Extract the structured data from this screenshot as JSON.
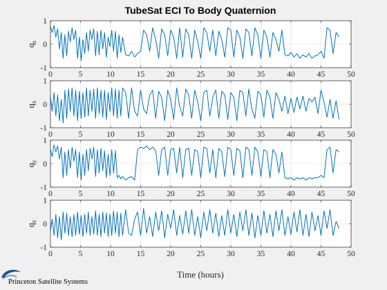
{
  "figure": {
    "title": "TubeSat ECI To Body Quaternion",
    "xlabel": "Time (hours)",
    "logo_text": "Princeton Satellite Systems",
    "line_color": "#0072bd"
  },
  "chart_data": [
    {
      "type": "line",
      "ylabel": "q_s",
      "xlim": [
        0,
        50
      ],
      "ylim": [
        -1,
        1
      ],
      "xticks": [
        0,
        5,
        10,
        15,
        20,
        25,
        30,
        35,
        40,
        45,
        50
      ],
      "yticks": [
        -1,
        0,
        1
      ],
      "grid": true,
      "series": [
        {
          "x": [
            0,
            0.3,
            0.6,
            0.9,
            1.2,
            1.5,
            1.8,
            2.1,
            2.4,
            2.7,
            3.0,
            3.3,
            3.6,
            3.9,
            4.2,
            4.5,
            4.8,
            5.1,
            5.4,
            5.7,
            6.0,
            6.3,
            6.6,
            6.9,
            7.2,
            7.5,
            7.8,
            8.1,
            8.4,
            8.7,
            9.0,
            9.3,
            9.6,
            9.9,
            10.2,
            10.5,
            10.8,
            11.1,
            11.4,
            11.7,
            12.0,
            12.5,
            13.0,
            13.5,
            14.0,
            14.5,
            15.0,
            15.5,
            16.0,
            16.5,
            17.0,
            17.5,
            18.0,
            18.5,
            19.0,
            19.5,
            20.0,
            20.5,
            21.0,
            21.5,
            22.0,
            22.5,
            23.0,
            23.5,
            24.0,
            24.5,
            25.0,
            25.5,
            26.0,
            26.5,
            27.0,
            27.5,
            28.0,
            28.5,
            29.0,
            29.5,
            30.0,
            30.5,
            31.0,
            31.5,
            32.0,
            32.5,
            33.0,
            33.5,
            34.0,
            34.5,
            35.0,
            35.5,
            36.0,
            36.5,
            37.0,
            37.5,
            38.0,
            38.5,
            39.0,
            39.5,
            40.0,
            40.5,
            41.0,
            41.5,
            42.0,
            42.5,
            43.0,
            43.5,
            44.0,
            44.5,
            45.0,
            45.5,
            46.0,
            46.5,
            47.0,
            47.5,
            48.0
          ],
          "y": [
            0.75,
            0.5,
            0.8,
            0.3,
            0.65,
            -0.2,
            0.5,
            -0.6,
            0.4,
            -0.5,
            0.55,
            0.1,
            0.7,
            0.2,
            0.6,
            -0.6,
            0.3,
            -0.7,
            0.2,
            -0.4,
            0.5,
            -0.3,
            0.6,
            0.2,
            0.65,
            -0.5,
            0.55,
            -0.45,
            0.6,
            -0.2,
            0.5,
            -0.55,
            0.3,
            -0.1,
            0.6,
            -0.3,
            0.55,
            -0.6,
            0.4,
            -0.35,
            0.3,
            -0.45,
            -0.5,
            -0.3,
            -0.55,
            -0.4,
            -0.3,
            0.6,
            0.4,
            -0.3,
            0.7,
            0.2,
            -0.6,
            0.65,
            0.4,
            -0.5,
            0.6,
            0.3,
            -0.6,
            0.7,
            -0.55,
            0.65,
            0.4,
            -0.6,
            0.6,
            0.1,
            -0.6,
            0.7,
            0.5,
            -0.3,
            0.6,
            -0.5,
            0.55,
            0.2,
            -0.55,
            0.7,
            0.6,
            -0.55,
            0.6,
            0.3,
            -0.6,
            0.65,
            0.5,
            -0.5,
            0.7,
            0.4,
            -0.6,
            0.6,
            0.3,
            -0.55,
            0.5,
            0.2,
            -0.3,
            0.6,
            -0.45,
            -0.5,
            -0.35,
            -0.55,
            -0.4,
            -0.6,
            -0.45,
            -0.55,
            -0.4,
            -0.6,
            -0.5,
            -0.45,
            -0.3,
            -0.6,
            0.7,
            0.6,
            -0.4,
            0.5,
            0.3
          ]
        }
      ]
    },
    {
      "type": "line",
      "ylabel": "q_x",
      "xlim": [
        0,
        50
      ],
      "ylim": [
        -1,
        1
      ],
      "xticks": [
        0,
        5,
        10,
        15,
        20,
        25,
        30,
        35,
        40,
        45,
        50
      ],
      "yticks": [
        -1,
        0,
        1
      ],
      "grid": true,
      "series": [
        {
          "x": [
            0,
            0.3,
            0.6,
            0.9,
            1.2,
            1.5,
            1.8,
            2.1,
            2.4,
            2.7,
            3.0,
            3.3,
            3.6,
            3.9,
            4.2,
            4.5,
            4.8,
            5.1,
            5.4,
            5.7,
            6.0,
            6.3,
            6.6,
            6.9,
            7.2,
            7.5,
            7.8,
            8.1,
            8.4,
            8.7,
            9.0,
            9.3,
            9.6,
            9.9,
            10.2,
            10.5,
            10.8,
            11.1,
            11.4,
            11.7,
            12.0,
            12.5,
            13.0,
            13.5,
            14.0,
            14.5,
            15.0,
            15.5,
            16.0,
            16.5,
            17.0,
            17.5,
            18.0,
            18.5,
            19.0,
            19.5,
            20.0,
            20.5,
            21.0,
            21.5,
            22.0,
            22.5,
            23.0,
            23.5,
            24.0,
            24.5,
            25.0,
            25.5,
            26.0,
            26.5,
            27.0,
            27.5,
            28.0,
            28.5,
            29.0,
            29.5,
            30.0,
            30.5,
            31.0,
            31.5,
            32.0,
            32.5,
            33.0,
            33.5,
            34.0,
            34.5,
            35.0,
            35.5,
            36.0,
            36.5,
            37.0,
            37.5,
            38.0,
            38.5,
            39.0,
            39.5,
            40.0,
            40.5,
            41.0,
            41.5,
            42.0,
            42.5,
            43.0,
            43.5,
            44.0,
            44.5,
            45.0,
            45.5,
            46.0,
            46.5,
            47.0,
            47.5,
            48.0
          ],
          "y": [
            0.3,
            -0.3,
            0.5,
            -0.5,
            0.4,
            -0.7,
            0.2,
            -0.8,
            0.6,
            -0.6,
            0.65,
            -0.3,
            0.7,
            -0.5,
            0.6,
            -0.7,
            0.55,
            -0.6,
            0.5,
            -0.55,
            0.7,
            -0.5,
            0.6,
            -0.3,
            0.65,
            -0.6,
            0.7,
            -0.4,
            0.6,
            -0.55,
            0.6,
            -0.65,
            0.5,
            -0.3,
            0.7,
            -0.5,
            0.65,
            -0.6,
            0.6,
            -0.5,
            0.7,
            0.5,
            -0.6,
            0.7,
            -0.3,
            -0.5,
            0.6,
            -0.2,
            -0.4,
            0.4,
            0.6,
            -0.6,
            0.55,
            0.3,
            -0.7,
            0.6,
            0.2,
            -0.65,
            0.7,
            -0.1,
            -0.5,
            0.65,
            0.4,
            -0.6,
            0.6,
            0.1,
            -0.7,
            0.5,
            0.6,
            -0.5,
            0.3,
            0.6,
            -0.6,
            0.55,
            0.4,
            -0.65,
            0.5,
            0.3,
            -0.7,
            0.6,
            0.5,
            -0.5,
            0.65,
            -0.2,
            -0.6,
            0.55,
            0.4,
            -0.55,
            0.6,
            0.3,
            -0.6,
            0.5,
            0.2,
            -0.3,
            0.35,
            -0.4,
            0.25,
            -0.35,
            0.3,
            -0.2,
            0.35,
            -0.3,
            0.25,
            0.1,
            0.3,
            -0.4,
            0.6,
            0.1,
            -0.55,
            0.2,
            -0.6,
            0.15,
            -0.65
          ]
        }
      ]
    },
    {
      "type": "line",
      "ylabel": "q_y",
      "xlim": [
        0,
        50
      ],
      "ylim": [
        -1,
        1
      ],
      "xticks": [
        0,
        5,
        10,
        15,
        20,
        25,
        30,
        35,
        40,
        45,
        50
      ],
      "yticks": [
        -1,
        0,
        1
      ],
      "grid": true,
      "series": [
        {
          "x": [
            0,
            0.3,
            0.6,
            0.9,
            1.2,
            1.5,
            1.8,
            2.1,
            2.4,
            2.7,
            3.0,
            3.3,
            3.6,
            3.9,
            4.2,
            4.5,
            4.8,
            5.1,
            5.4,
            5.7,
            6.0,
            6.3,
            6.6,
            6.9,
            7.2,
            7.5,
            7.8,
            8.1,
            8.4,
            8.7,
            9.0,
            9.3,
            9.6,
            9.9,
            10.2,
            10.5,
            10.8,
            11.1,
            11.4,
            11.7,
            12.0,
            12.5,
            13.0,
            13.5,
            14.0,
            14.5,
            15.0,
            15.5,
            16.0,
            16.5,
            17.0,
            17.5,
            18.0,
            18.5,
            19.0,
            19.5,
            20.0,
            20.5,
            21.0,
            21.5,
            22.0,
            22.5,
            23.0,
            23.5,
            24.0,
            24.5,
            25.0,
            25.5,
            26.0,
            26.5,
            27.0,
            27.5,
            28.0,
            28.5,
            29.0,
            29.5,
            30.0,
            30.5,
            31.0,
            31.5,
            32.0,
            32.5,
            33.0,
            33.5,
            34.0,
            34.5,
            35.0,
            35.5,
            36.0,
            36.5,
            37.0,
            37.5,
            38.0,
            38.5,
            39.0,
            39.5,
            40.0,
            40.5,
            41.0,
            41.5,
            42.0,
            42.5,
            43.0,
            43.5,
            44.0,
            44.5,
            45.0,
            45.5,
            46.0,
            46.5,
            47.0,
            47.5,
            48.0
          ],
          "y": [
            0.6,
            0.3,
            0.8,
            0.5,
            0.75,
            0.2,
            0.7,
            -0.6,
            0.5,
            -0.5,
            0.6,
            -0.2,
            0.7,
            0.1,
            0.6,
            -0.6,
            0.5,
            -0.7,
            0.4,
            -0.5,
            0.6,
            -0.3,
            0.65,
            0.2,
            0.7,
            -0.55,
            0.6,
            -0.4,
            0.65,
            -0.3,
            0.55,
            -0.6,
            0.4,
            -0.5,
            0.6,
            -0.4,
            0.55,
            -0.6,
            -0.5,
            -0.65,
            -0.55,
            -0.7,
            -0.6,
            -0.55,
            -0.7,
            0.6,
            0.7,
            0.65,
            0.75,
            0.6,
            0.7,
            0.55,
            -0.5,
            0.6,
            0.7,
            -0.5,
            0.6,
            0.65,
            -0.4,
            0.7,
            -0.6,
            0.6,
            0.65,
            -0.5,
            0.6,
            0.5,
            -0.6,
            0.7,
            0.65,
            -0.4,
            0.6,
            -0.6,
            0.65,
            0.5,
            -0.55,
            0.7,
            0.6,
            -0.5,
            0.65,
            0.55,
            -0.6,
            0.7,
            0.6,
            -0.5,
            0.7,
            0.5,
            -0.55,
            0.6,
            0.5,
            -0.6,
            0.6,
            0.4,
            -0.4,
            0.5,
            -0.6,
            -0.65,
            -0.6,
            -0.7,
            -0.6,
            -0.65,
            -0.6,
            -0.7,
            -0.6,
            -0.65,
            -0.6,
            -0.6,
            -0.5,
            -0.6,
            0.6,
            0.7,
            -0.4,
            0.6,
            0.5
          ]
        }
      ]
    },
    {
      "type": "line",
      "ylabel": "q_z",
      "xlim": [
        0,
        50
      ],
      "ylim": [
        -1,
        1
      ],
      "xticks": [
        0,
        5,
        10,
        15,
        20,
        25,
        30,
        35,
        40,
        45,
        50
      ],
      "yticks": [
        -1,
        0,
        1
      ],
      "grid": true,
      "series": [
        {
          "x": [
            0,
            0.3,
            0.6,
            0.9,
            1.2,
            1.5,
            1.8,
            2.1,
            2.4,
            2.7,
            3.0,
            3.3,
            3.6,
            3.9,
            4.2,
            4.5,
            4.8,
            5.1,
            5.4,
            5.7,
            6.0,
            6.3,
            6.6,
            6.9,
            7.2,
            7.5,
            7.8,
            8.1,
            8.4,
            8.7,
            9.0,
            9.3,
            9.6,
            9.9,
            10.2,
            10.5,
            10.8,
            11.1,
            11.4,
            11.7,
            12.0,
            12.5,
            13.0,
            13.5,
            14.0,
            14.5,
            15.0,
            15.5,
            16.0,
            16.5,
            17.0,
            17.5,
            18.0,
            18.5,
            19.0,
            19.5,
            20.0,
            20.5,
            21.0,
            21.5,
            22.0,
            22.5,
            23.0,
            23.5,
            24.0,
            24.5,
            25.0,
            25.5,
            26.0,
            26.5,
            27.0,
            27.5,
            28.0,
            28.5,
            29.0,
            29.5,
            30.0,
            30.5,
            31.0,
            31.5,
            32.0,
            32.5,
            33.0,
            33.5,
            34.0,
            34.5,
            35.0,
            35.5,
            36.0,
            36.5,
            37.0,
            37.5,
            38.0,
            38.5,
            39.0,
            39.5,
            40.0,
            40.5,
            41.0,
            41.5,
            42.0,
            42.5,
            43.0,
            43.5,
            44.0,
            44.5,
            45.0,
            45.5,
            46.0,
            46.5,
            47.0,
            47.5,
            48.0
          ],
          "y": [
            -0.3,
            0.2,
            -0.5,
            0.4,
            -0.6,
            0.3,
            -0.7,
            0.5,
            -0.4,
            0.45,
            -0.5,
            0.3,
            -0.55,
            0.4,
            -0.5,
            0.5,
            -0.45,
            0.35,
            -0.55,
            0.4,
            -0.4,
            0.5,
            -0.5,
            0.3,
            -0.45,
            0.55,
            -0.5,
            0.4,
            -0.55,
            0.5,
            -0.4,
            0.45,
            -0.55,
            0.4,
            -0.5,
            0.55,
            -0.4,
            0.5,
            -0.55,
            0.45,
            -0.5,
            0.6,
            -0.4,
            -0.5,
            0.2,
            0.5,
            -0.5,
            0.65,
            -0.4,
            0.3,
            -0.55,
            0.5,
            -0.3,
            0.55,
            -0.6,
            0.4,
            -0.2,
            0.6,
            -0.5,
            0.35,
            -0.45,
            0.55,
            -0.4,
            0.6,
            -0.5,
            0.3,
            -0.6,
            0.5,
            -0.3,
            0.6,
            -0.4,
            0.45,
            -0.55,
            0.35,
            -0.5,
            0.6,
            -0.4,
            0.4,
            -0.55,
            0.5,
            -0.3,
            0.6,
            -0.5,
            0.45,
            -0.6,
            0.35,
            -0.5,
            0.55,
            -0.4,
            0.4,
            -0.55,
            0.55,
            -0.3,
            0.6,
            -0.5,
            0.3,
            -0.45,
            0.5,
            -0.35,
            0.6,
            -0.5,
            0.4,
            -0.55,
            0.5,
            -0.3,
            0.35,
            -0.5,
            0.55,
            -0.2,
            0.6,
            -0.5,
            0.1,
            -0.2
          ]
        }
      ]
    }
  ]
}
